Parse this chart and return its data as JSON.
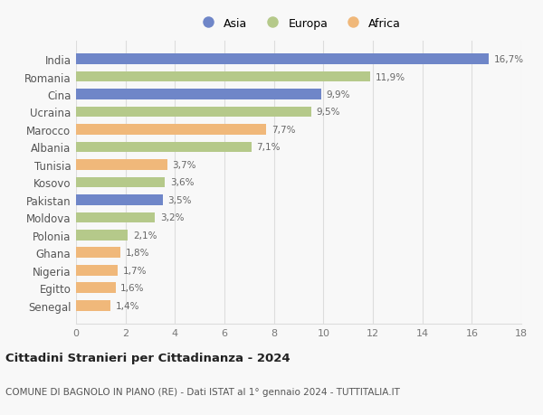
{
  "countries": [
    "India",
    "Romania",
    "Cina",
    "Ucraina",
    "Marocco",
    "Albania",
    "Tunisia",
    "Kosovo",
    "Pakistan",
    "Moldova",
    "Polonia",
    "Ghana",
    "Nigeria",
    "Egitto",
    "Senegal"
  ],
  "values": [
    16.7,
    11.9,
    9.9,
    9.5,
    7.7,
    7.1,
    3.7,
    3.6,
    3.5,
    3.2,
    2.1,
    1.8,
    1.7,
    1.6,
    1.4
  ],
  "labels": [
    "16,7%",
    "11,9%",
    "9,9%",
    "9,5%",
    "7,7%",
    "7,1%",
    "3,7%",
    "3,6%",
    "3,5%",
    "3,2%",
    "2,1%",
    "1,8%",
    "1,7%",
    "1,6%",
    "1,4%"
  ],
  "continents": [
    "Asia",
    "Europa",
    "Asia",
    "Europa",
    "Africa",
    "Europa",
    "Africa",
    "Europa",
    "Asia",
    "Europa",
    "Europa",
    "Africa",
    "Africa",
    "Africa",
    "Africa"
  ],
  "colors": {
    "Asia": "#6f86c8",
    "Europa": "#b5c98a",
    "Africa": "#f0b87a"
  },
  "legend_order": [
    "Asia",
    "Europa",
    "Africa"
  ],
  "xlim": [
    0,
    18
  ],
  "xticks": [
    0,
    2,
    4,
    6,
    8,
    10,
    12,
    14,
    16,
    18
  ],
  "title1": "Cittadini Stranieri per Cittadinanza - 2024",
  "title2": "COMUNE DI BAGNOLO IN PIANO (RE) - Dati ISTAT al 1° gennaio 2024 - TUTTITALIA.IT",
  "background_color": "#f8f8f8",
  "grid_color": "#dddddd"
}
